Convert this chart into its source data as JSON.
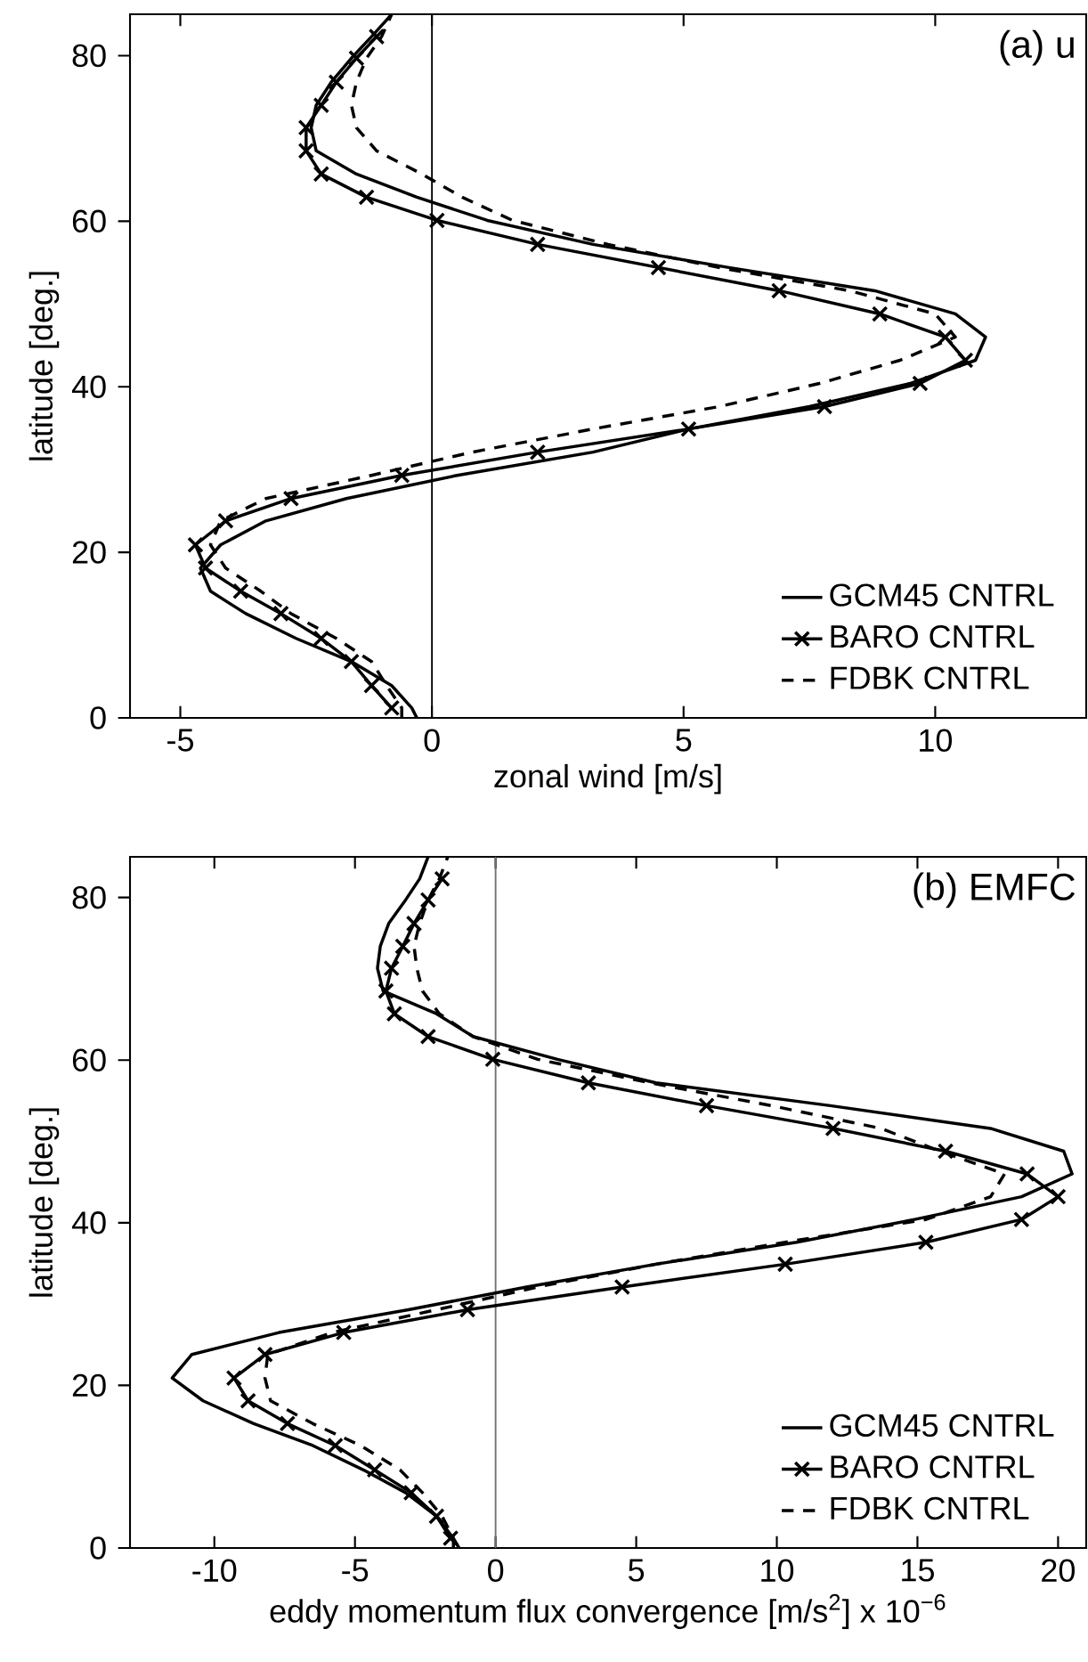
{
  "chart_data": [
    {
      "type": "line",
      "annotations": [
        "(a) u"
      ],
      "xlabel": "zonal wind [m/s]",
      "ylabel": "latitude [deg.]",
      "xlim": [
        -6,
        13
      ],
      "ylim": [
        0,
        85
      ],
      "xticks": [
        -5,
        0,
        5,
        10
      ],
      "yticks": [
        0,
        20,
        40,
        60,
        80
      ],
      "legend": "bottom right",
      "ref_lines": [
        {
          "axis": "x",
          "value": 0,
          "color": "#000000"
        }
      ],
      "series": [
        {
          "name": "GCM45 CNTRL",
          "color": "#000000",
          "line_style": "solid",
          "x": [
            -0.3,
            -0.4,
            -0.8,
            -1.6,
            -2.7,
            -3.7,
            -4.4,
            -4.6,
            -4.2,
            -3.3,
            -1.7,
            0.5,
            3.2,
            5.1,
            7.5,
            9.5,
            10.8,
            11.0,
            10.4,
            8.8,
            5.9,
            3.2,
            1.1,
            -0.3,
            -1.5,
            -2.3,
            -2.4,
            -2.3,
            -2.0,
            -1.6,
            -1.2,
            -0.8
          ],
          "values": [
            0,
            1.2,
            3.9,
            6.8,
            9.6,
            12.6,
            15.3,
            18.1,
            20.9,
            23.8,
            26.5,
            29.3,
            32.1,
            34.9,
            37.6,
            40.4,
            43.2,
            46.0,
            48.8,
            51.6,
            54.4,
            57.2,
            60.1,
            62.9,
            65.7,
            68.5,
            71.3,
            74.0,
            76.8,
            79.7,
            82.3,
            85
          ]
        },
        {
          "name": "BARO CNTRL",
          "color": "#000000",
          "line_style": "solid",
          "marker": "cross",
          "x": [
            -0.8,
            -1.2,
            -1.6,
            -2.2,
            -3.0,
            -3.8,
            -4.5,
            -4.7,
            -4.1,
            -2.8,
            -0.6,
            2.1,
            5.1,
            7.8,
            9.7,
            10.6,
            10.2,
            8.9,
            6.9,
            4.5,
            2.1,
            0.1,
            -1.3,
            -2.2,
            -2.5,
            -2.5,
            -2.2,
            -1.9,
            -1.5,
            -1.1
          ],
          "values": [
            1.2,
            3.9,
            6.8,
            9.6,
            12.6,
            15.3,
            18.1,
            20.9,
            23.8,
            26.5,
            29.3,
            32.1,
            34.9,
            37.6,
            40.4,
            43.2,
            46.0,
            48.8,
            51.6,
            54.4,
            57.2,
            60.1,
            62.9,
            65.7,
            68.5,
            71.3,
            74.0,
            76.8,
            79.7,
            82.3
          ]
        },
        {
          "name": "FDBK CNTRL",
          "color": "#000000",
          "line_style": "dashed",
          "x": [
            -0.6,
            -0.6,
            -0.9,
            -1.2,
            -1.9,
            -2.8,
            -3.4,
            -4.1,
            -4.4,
            -4.2,
            -3.3,
            -1.2,
            0.8,
            3.2,
            5.7,
            7.7,
            9.3,
            10.4,
            10.0,
            8.3,
            5.7,
            3.5,
            1.6,
            0.6,
            -0.2,
            -1.1,
            -1.5,
            -1.6,
            -1.5,
            -1.3,
            -1.0,
            -0.8
          ],
          "values": [
            0,
            1.2,
            3.9,
            6.8,
            9.6,
            12.6,
            15.3,
            18.1,
            20.9,
            23.8,
            26.5,
            29.3,
            32.1,
            34.9,
            37.6,
            40.4,
            43.2,
            46.0,
            48.8,
            51.6,
            54.4,
            57.2,
            60.1,
            62.9,
            65.7,
            68.5,
            71.3,
            74.0,
            76.8,
            79.7,
            82.3,
            85
          ]
        }
      ]
    },
    {
      "type": "line",
      "annotations": [
        "(b) EMFC"
      ],
      "xlabel": "eddy momentum flux convergence [m/s$^{2}$] x 10$^{−6}$",
      "ylabel": "latitude [deg.]",
      "xlim": [
        -13,
        21
      ],
      "ylim": [
        0,
        85
      ],
      "xticks": [
        -10,
        -5,
        0,
        5,
        10,
        15,
        20
      ],
      "yticks": [
        0,
        20,
        40,
        60,
        80
      ],
      "legend": "bottom right",
      "ref_lines": [
        {
          "axis": "x",
          "value": 0,
          "color": "#707070"
        }
      ],
      "series": [
        {
          "name": "GCM45 CNTRL",
          "color": "#000000",
          "line_style": "solid",
          "x": [
            -1.3,
            -1.5,
            -2.1,
            -3.2,
            -4.7,
            -6.5,
            -8.6,
            -10.4,
            -11.5,
            -10.8,
            -7.7,
            -3.1,
            1.1,
            5.7,
            10.7,
            14.9,
            18.7,
            20.5,
            20.2,
            17.6,
            11.9,
            5.7,
            2.2,
            -0.8,
            -2.1,
            -4.0,
            -4.2,
            -4.1,
            -3.8,
            -3.2,
            -2.7,
            -2.4
          ],
          "values": [
            0,
            1.2,
            3.9,
            6.8,
            9.6,
            12.6,
            15.3,
            18.1,
            20.9,
            23.8,
            26.5,
            29.3,
            32.1,
            34.9,
            37.6,
            40.4,
            43.2,
            46.0,
            48.8,
            51.6,
            54.4,
            57.2,
            60.1,
            62.9,
            65.7,
            68.5,
            71.3,
            74.0,
            76.8,
            79.7,
            82.3,
            85
          ]
        },
        {
          "name": "BARO CNTRL",
          "color": "#000000",
          "line_style": "solid",
          "marker": "cross",
          "x": [
            -1.6,
            -2.1,
            -3.0,
            -4.3,
            -5.7,
            -7.4,
            -8.8,
            -9.3,
            -8.2,
            -5.4,
            -1.0,
            4.5,
            10.3,
            15.3,
            18.7,
            20.0,
            18.9,
            16.0,
            12.0,
            7.5,
            3.3,
            -0.1,
            -2.4,
            -3.6,
            -3.9,
            -3.7,
            -3.3,
            -2.9,
            -2.4,
            -1.9
          ],
          "values": [
            1.2,
            3.9,
            6.8,
            9.6,
            12.6,
            15.3,
            18.1,
            20.9,
            23.8,
            26.5,
            29.3,
            32.1,
            34.9,
            37.6,
            40.4,
            43.2,
            46.0,
            48.8,
            51.6,
            54.4,
            57.2,
            60.1,
            62.9,
            65.7,
            68.5,
            71.3,
            74.0,
            76.8,
            79.7,
            82.3
          ]
        },
        {
          "name": "FDBK CNTRL",
          "color": "#000000",
          "line_style": "dashed",
          "x": [
            -1.5,
            -1.5,
            -1.9,
            -2.6,
            -3.4,
            -4.8,
            -6.5,
            -8.0,
            -8.2,
            -8.1,
            -5.8,
            -2.1,
            1.5,
            5.7,
            10.3,
            15.3,
            17.6,
            18.1,
            15.8,
            13.7,
            9.8,
            5.5,
            1.5,
            -0.8,
            -2.0,
            -2.6,
            -2.8,
            -2.9,
            -2.7,
            -2.4,
            -2.0,
            -1.7
          ],
          "values": [
            0,
            1.2,
            3.9,
            6.8,
            9.6,
            12.6,
            15.3,
            18.1,
            20.9,
            23.8,
            26.5,
            29.3,
            32.1,
            34.9,
            37.6,
            40.4,
            43.2,
            46.0,
            48.8,
            51.6,
            54.4,
            57.2,
            60.1,
            62.9,
            65.7,
            68.5,
            71.3,
            74.0,
            76.8,
            79.7,
            82.3,
            85
          ]
        }
      ]
    }
  ]
}
